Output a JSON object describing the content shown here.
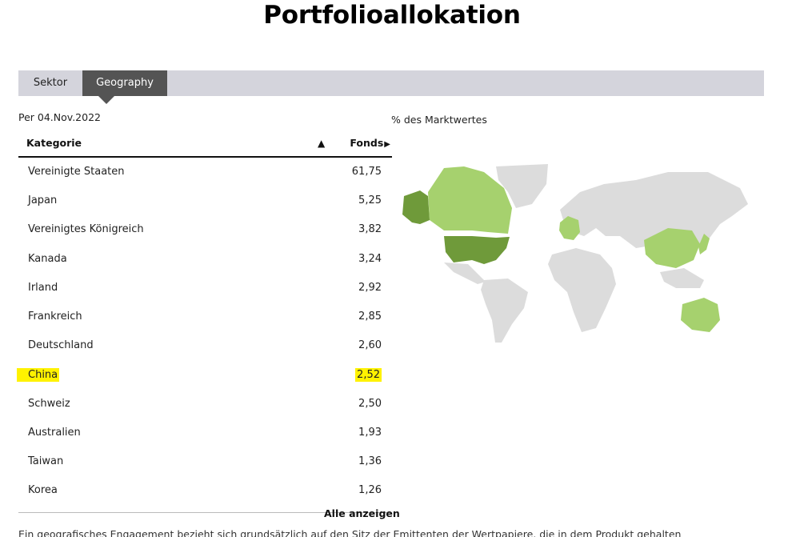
{
  "page": {
    "title": "Portfolioallokation"
  },
  "tabs": [
    {
      "label": "Sektor",
      "active": false
    },
    {
      "label": "Geography",
      "active": true
    }
  ],
  "as_of": "Per 04.Nov.2022",
  "map": {
    "caption": "% des Marktwertes",
    "color_high": "#6f9a3a",
    "color_mid": "#a6d16e",
    "color_none": "#dcdcdc"
  },
  "table": {
    "headers": {
      "category": "Kategorie",
      "fund": "Fonds",
      "sort_icon": "▲",
      "fund_icon": "▶"
    },
    "rows": [
      {
        "name": "Vereinigte Staaten",
        "value": "61,75"
      },
      {
        "name": "Japan",
        "value": "5,25"
      },
      {
        "name": "Vereinigtes Königreich",
        "value": "3,82"
      },
      {
        "name": "Kanada",
        "value": "3,24"
      },
      {
        "name": "Irland",
        "value": "2,92"
      },
      {
        "name": "Frankreich",
        "value": "2,85"
      },
      {
        "name": "Deutschland",
        "value": "2,60"
      },
      {
        "name": "China",
        "value": "2,52",
        "highlighted": true
      },
      {
        "name": "Schweiz",
        "value": "2,50"
      },
      {
        "name": "Australien",
        "value": "1,93"
      },
      {
        "name": "Taiwan",
        "value": "1,36"
      },
      {
        "name": "Korea",
        "value": "1,26"
      }
    ],
    "show_all": "Alle anzeigen"
  },
  "footnote": "Ein geografisches Engagement bezieht sich grundsätzlich auf den Sitz der Emittenten der Wertpapiere, die in dem Produkt gehalten"
}
